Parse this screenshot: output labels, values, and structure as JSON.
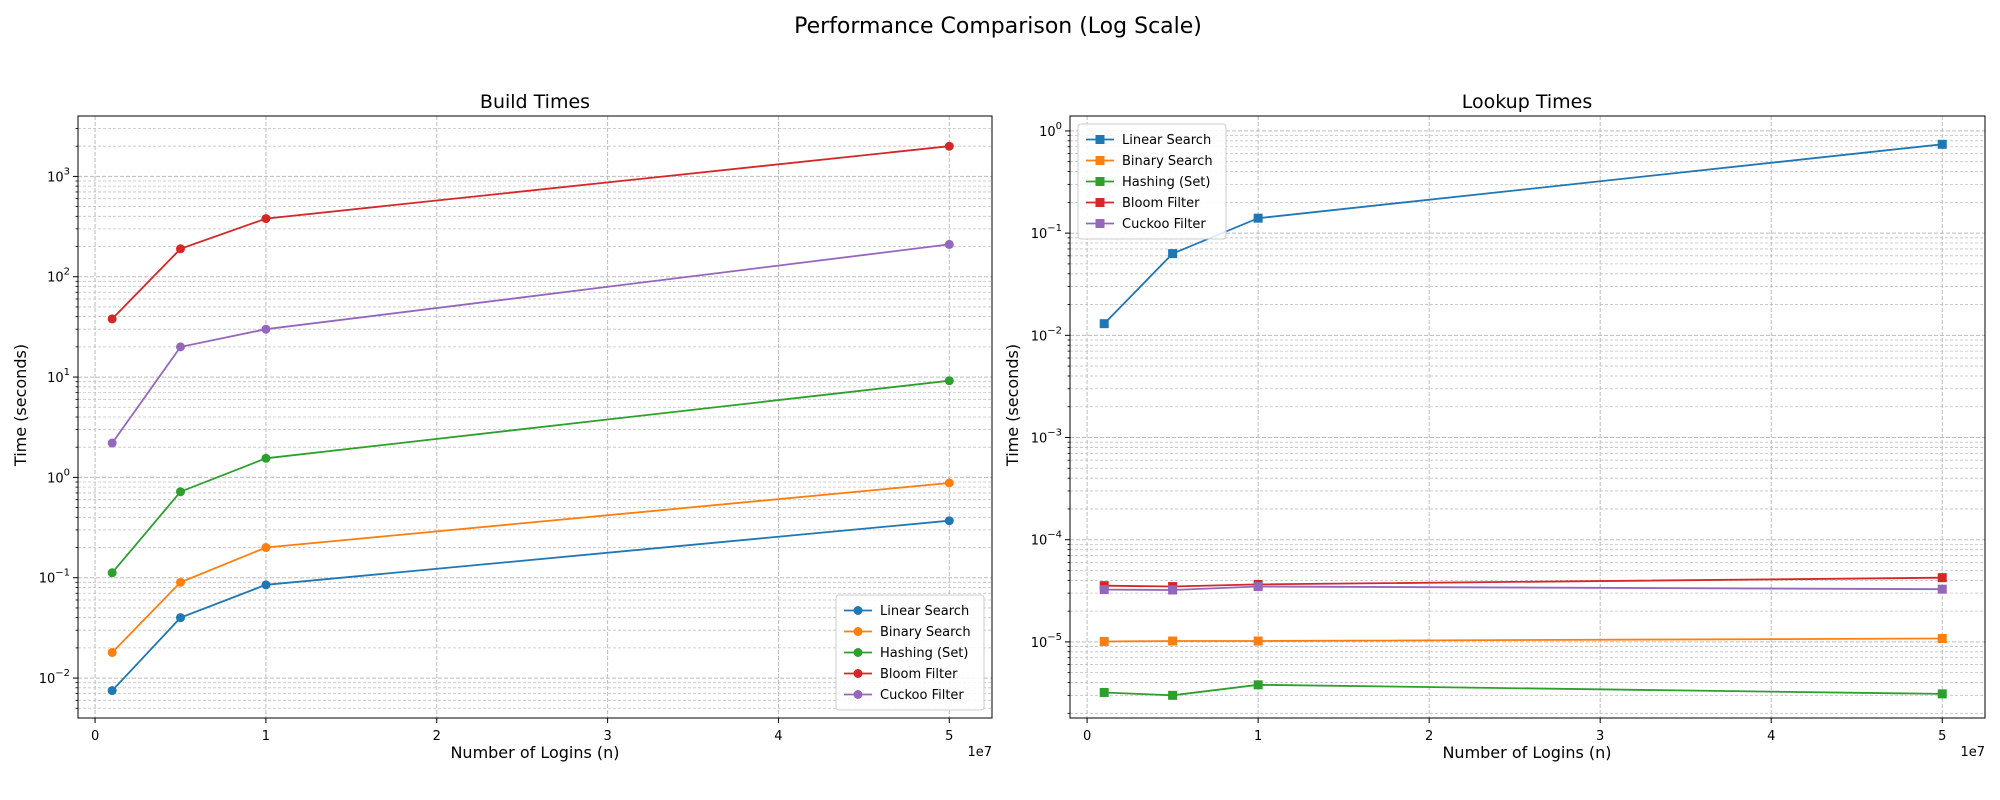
{
  "figure": {
    "title": "Performance Comparison (Log Scale)"
  },
  "chart_data": [
    {
      "type": "line",
      "title": "Build Times",
      "xlabel": "Number of Logins (n)",
      "ylabel": "Time (seconds)",
      "x_offset_label": "1e7",
      "x_ticks": [
        0,
        1,
        2,
        3,
        4,
        5
      ],
      "xlim": [
        -0.1,
        5.25
      ],
      "yscale": "log",
      "ylim": [
        0.004,
        4000
      ],
      "y_ticks": [
        {
          "value": 0.01,
          "mant": "10",
          "exp": "−2"
        },
        {
          "value": 0.1,
          "mant": "10",
          "exp": "−1"
        },
        {
          "value": 1,
          "mant": "10",
          "exp": "0"
        },
        {
          "value": 10,
          "mant": "10",
          "exp": "1"
        },
        {
          "value": 100,
          "mant": "10",
          "exp": "2"
        },
        {
          "value": 1000,
          "mant": "10",
          "exp": "3"
        }
      ],
      "grid": true,
      "marker": "circle",
      "legend": "lower right",
      "x": [
        0.1,
        0.5,
        1,
        5
      ],
      "series": [
        {
          "name": "Linear Search",
          "color": "#1f77b4",
          "values": [
            0.0075,
            0.04,
            0.085,
            0.37
          ]
        },
        {
          "name": "Binary Search",
          "color": "#ff7f0e",
          "values": [
            0.018,
            0.09,
            0.2,
            0.88
          ]
        },
        {
          "name": "Hashing (Set)",
          "color": "#2ca02c",
          "values": [
            0.112,
            0.72,
            1.55,
            9.2
          ]
        },
        {
          "name": "Bloom Filter",
          "color": "#d62728",
          "values": [
            38,
            190,
            380,
            2000
          ]
        },
        {
          "name": "Cuckoo Filter",
          "color": "#9467bd",
          "values": [
            2.2,
            20,
            30,
            210
          ]
        }
      ]
    },
    {
      "type": "line",
      "title": "Lookup Times",
      "xlabel": "Number of Logins (n)",
      "ylabel": "Time (seconds)",
      "x_offset_label": "1e7",
      "x_ticks": [
        0,
        1,
        2,
        3,
        4,
        5
      ],
      "xlim": [
        -0.1,
        5.25
      ],
      "yscale": "log",
      "ylim": [
        1.8e-06,
        1.4
      ],
      "y_ticks": [
        {
          "value": 1e-05,
          "mant": "10",
          "exp": "−5"
        },
        {
          "value": 0.0001,
          "mant": "10",
          "exp": "−4"
        },
        {
          "value": 0.001,
          "mant": "10",
          "exp": "−3"
        },
        {
          "value": 0.01,
          "mant": "10",
          "exp": "−2"
        },
        {
          "value": 0.1,
          "mant": "10",
          "exp": "−1"
        },
        {
          "value": 1,
          "mant": "10",
          "exp": "0"
        }
      ],
      "grid": true,
      "marker": "square",
      "legend": "upper left",
      "x": [
        0.1,
        0.5,
        1,
        5
      ],
      "series": [
        {
          "name": "Linear Search",
          "color": "#1f77b4",
          "values": [
            0.013,
            0.063,
            0.14,
            0.74
          ]
        },
        {
          "name": "Binary Search",
          "color": "#ff7f0e",
          "values": [
            1.01e-05,
            1.02e-05,
            1.02e-05,
            1.08e-05
          ]
        },
        {
          "name": "Hashing (Set)",
          "color": "#2ca02c",
          "values": [
            3.2e-06,
            3e-06,
            3.8e-06,
            3.1e-06
          ]
        },
        {
          "name": "Bloom Filter",
          "color": "#d62728",
          "values": [
            3.55e-05,
            3.48e-05,
            3.65e-05,
            4.25e-05
          ]
        },
        {
          "name": "Cuckoo Filter",
          "color": "#9467bd",
          "values": [
            3.25e-05,
            3.22e-05,
            3.48e-05,
            3.28e-05
          ]
        }
      ]
    }
  ]
}
